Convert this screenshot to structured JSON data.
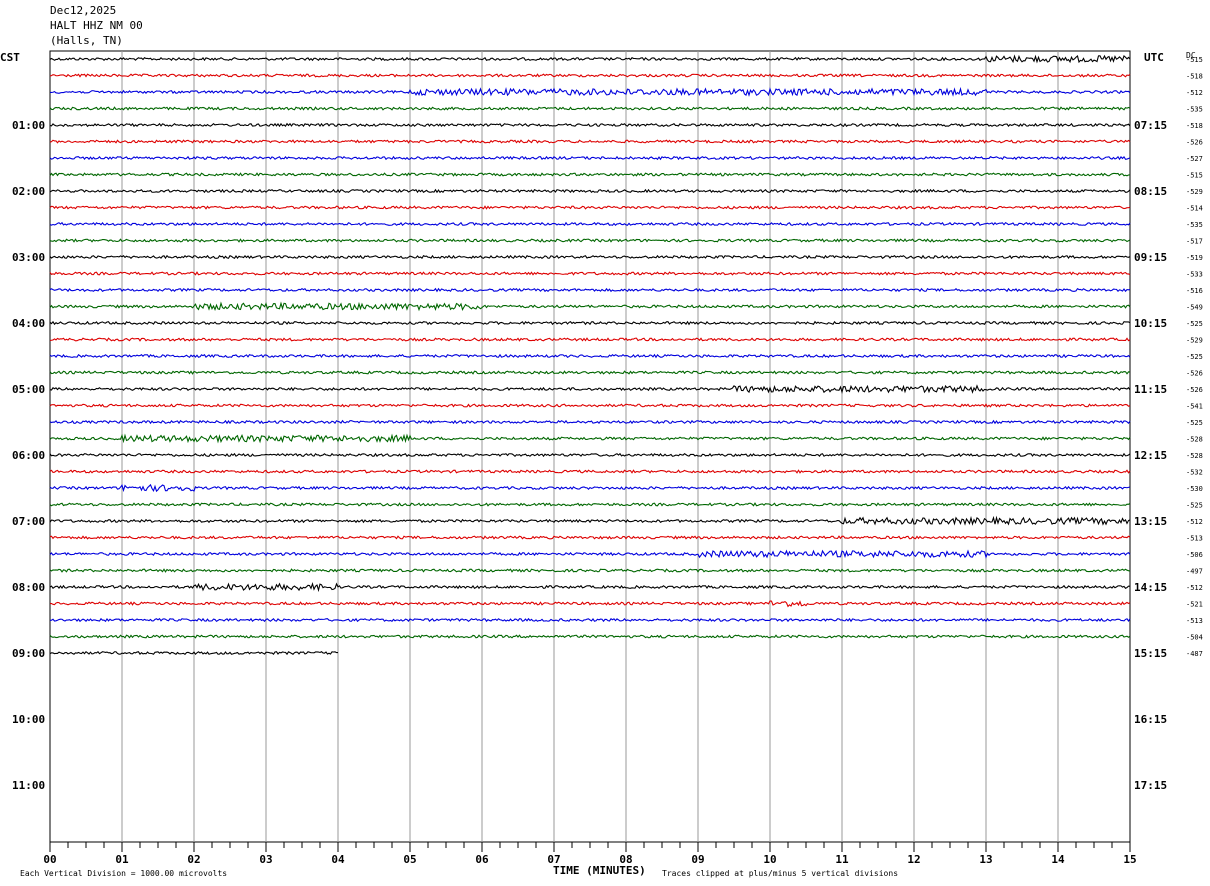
{
  "header": {
    "date": "Dec12,2025",
    "station": "HALT HHZ NM 00",
    "location": "(Halls, TN)"
  },
  "left_zone": "CST",
  "right_zone": "UTC",
  "dc_header": "DC",
  "footer": {
    "xlabel": "TIME (MINUTES)",
    "scale_note": "Each Vertical Division = 1000.00 microvolts",
    "clip_note": "Traces clipped at plus/minus 5 vertical divisions"
  },
  "colors": {
    "c0": "#000000",
    "c1": "#dd0000",
    "c2": "#0000dd",
    "c3": "#006600"
  },
  "chart_data": {
    "type": "line",
    "title": "HALT HHZ NM 00 (Halls, TN)",
    "xlabel": "TIME (MINUTES)",
    "xlim": [
      0,
      15
    ],
    "x_ticks": [
      "00",
      "01",
      "02",
      "03",
      "04",
      "05",
      "06",
      "07",
      "08",
      "09",
      "10",
      "11",
      "12",
      "13",
      "14",
      "15"
    ],
    "left_hour_labels": [
      "01:00",
      "02:00",
      "03:00",
      "04:00",
      "05:00",
      "06:00",
      "07:00",
      "08:00",
      "09:00",
      "10:00",
      "11:00"
    ],
    "right_hour_labels": [
      "07:15",
      "08:15",
      "09:15",
      "10:15",
      "11:15",
      "12:15",
      "13:15",
      "14:15",
      "15:15",
      "16:15",
      "17:15"
    ],
    "dc_offsets": [
      "-515",
      "-518",
      "-512",
      "-535",
      "-518",
      "-526",
      "-527",
      "-515",
      "-529",
      "-514",
      "-535",
      "-517",
      "-519",
      "-533",
      "-516",
      "-549",
      "-525",
      "-529",
      "-525",
      "-526",
      "-526",
      "-541",
      "-525",
      "-528",
      "-528",
      "-532",
      "-530",
      "-525",
      "-512",
      "-513",
      "-506",
      "-497",
      "-512",
      "-521",
      "-513",
      "-504",
      "-487"
    ],
    "trace_count": 37,
    "last_trace_end_minute": 4,
    "trace_colors": [
      "black",
      "red",
      "blue",
      "green"
    ],
    "noisy_segments": [
      {
        "trace": 0,
        "from": 13,
        "to": 15
      },
      {
        "trace": 2,
        "from": 5,
        "to": 13
      },
      {
        "trace": 15,
        "from": 2,
        "to": 6
      },
      {
        "trace": 20,
        "from": 9.5,
        "to": 13
      },
      {
        "trace": 23,
        "from": 1,
        "to": 5
      },
      {
        "trace": 26,
        "from": 1,
        "to": 2
      },
      {
        "trace": 28,
        "from": 11,
        "to": 15
      },
      {
        "trace": 30,
        "from": 9,
        "to": 13
      },
      {
        "trace": 32,
        "from": 2,
        "to": 4
      },
      {
        "trace": 33,
        "from": 10,
        "to": 10.5
      }
    ]
  }
}
